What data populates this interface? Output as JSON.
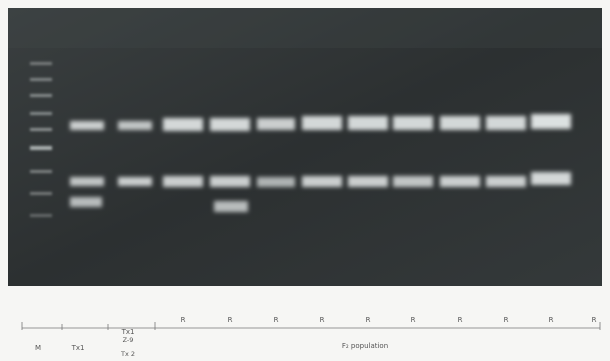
{
  "figure": {
    "lane_labels": [
      "M",
      "Tx1",
      "Tx1",
      "R",
      "R",
      "R",
      "R",
      "R",
      "R",
      "R",
      "R",
      "R",
      "R",
      "M"
    ],
    "parent_label_top": "Z-9",
    "parent_label_bottom": "Tx 2",
    "population_caption": "F₂ population",
    "colors": {
      "gel_background": "#2f3434",
      "band": "#e6eaea",
      "page": "#f6f6f4",
      "label_ink": "#555555"
    }
  }
}
